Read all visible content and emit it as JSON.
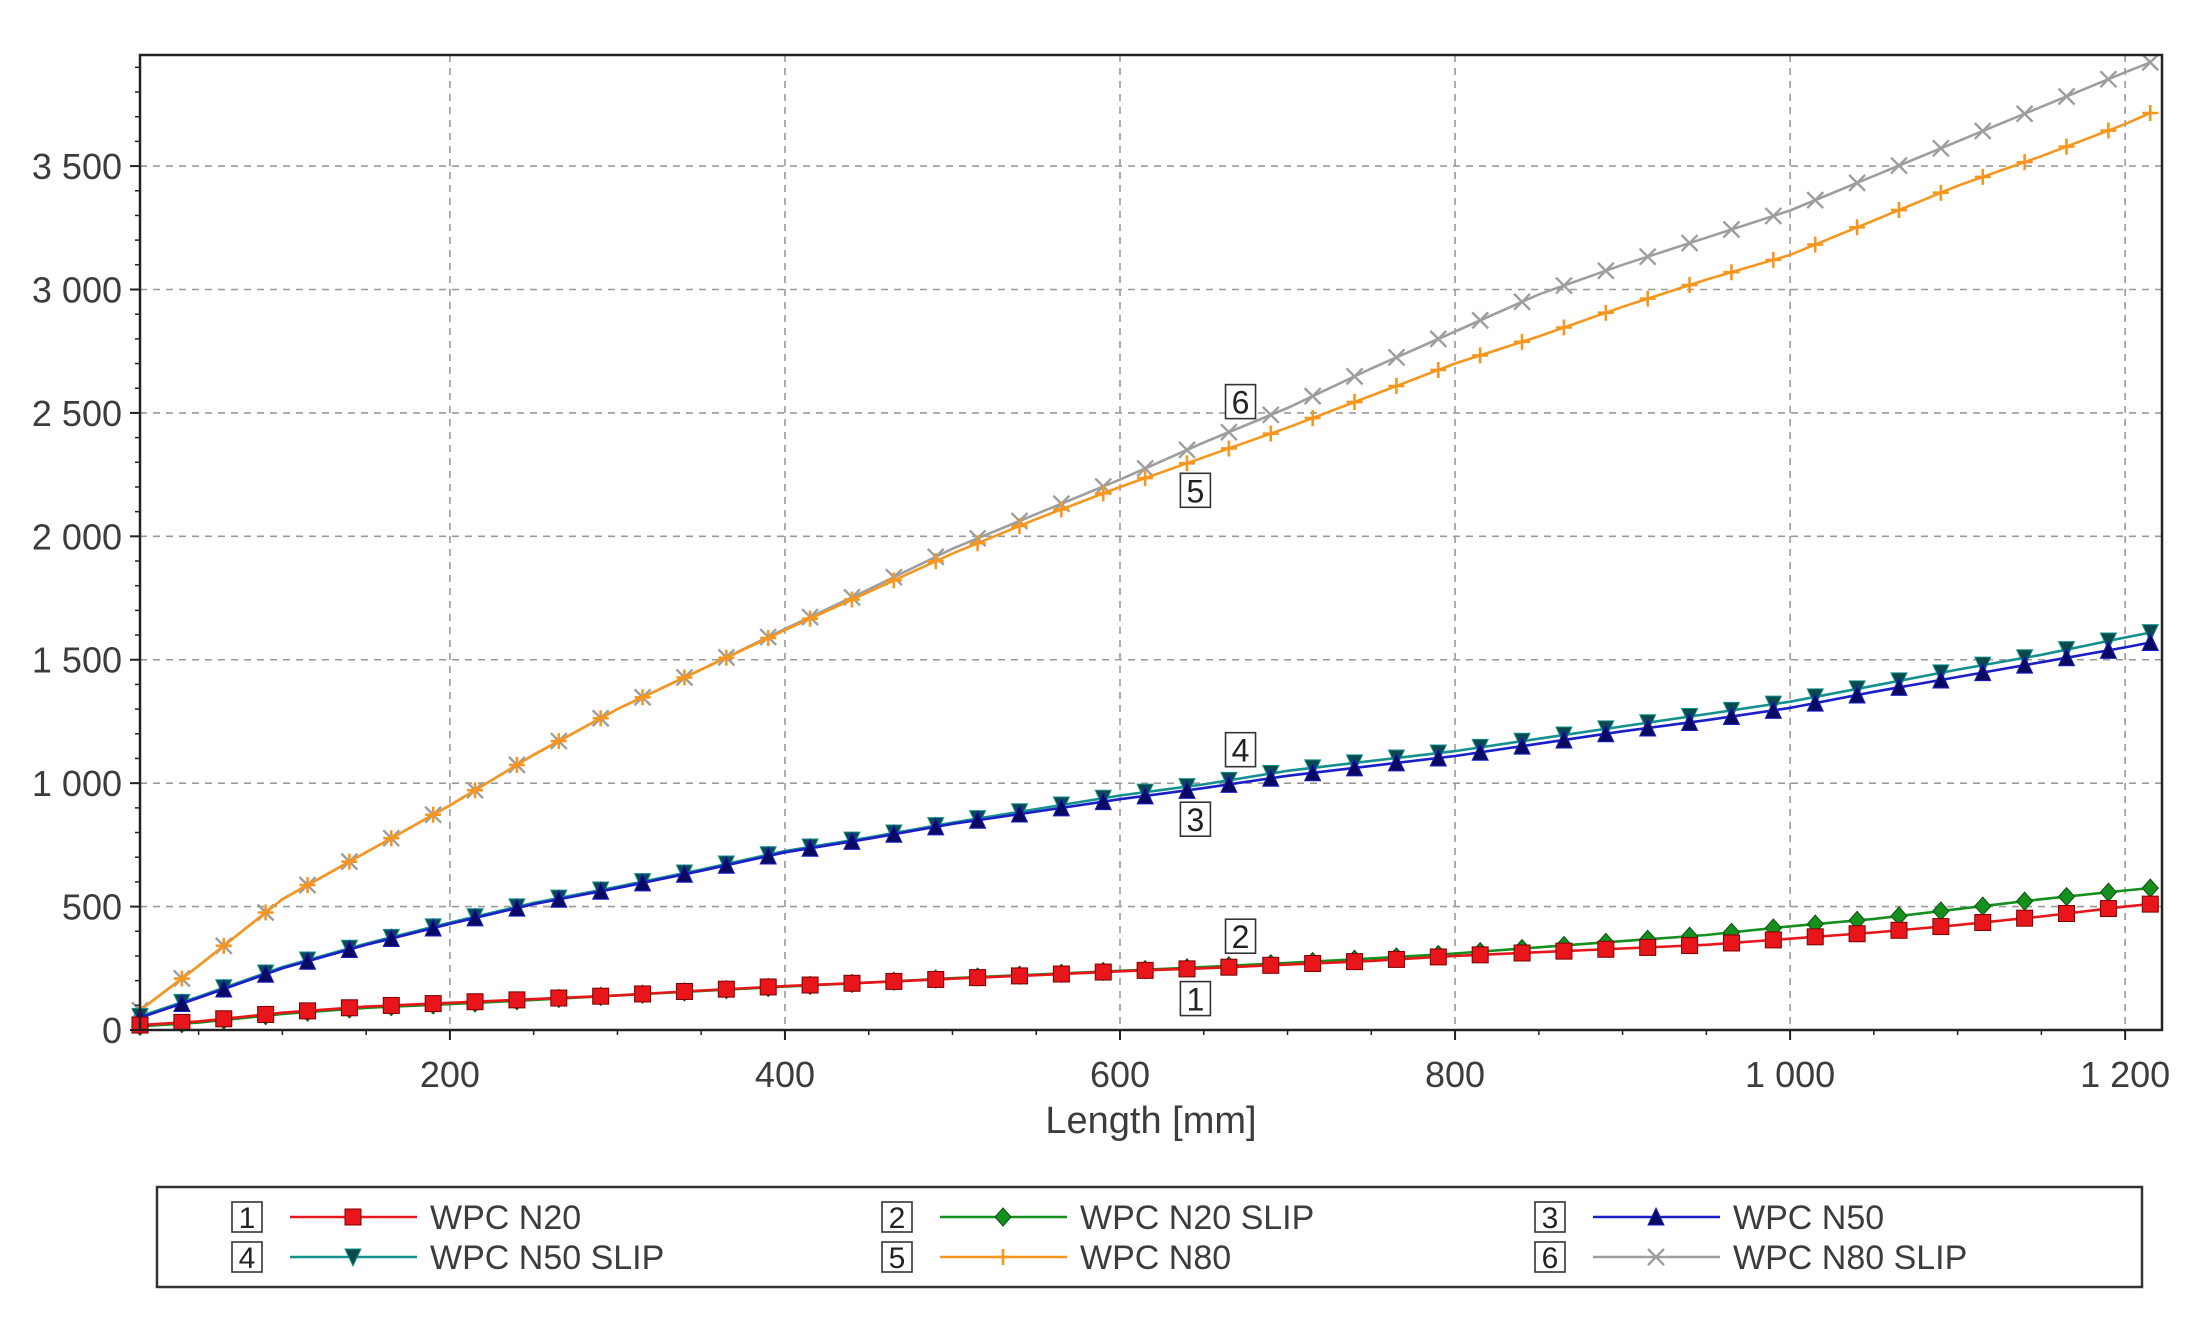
{
  "chart_data": {
    "type": "line",
    "title": "",
    "xlabel": "Length [mm]",
    "ylabel": "",
    "xlim": [
      15,
      1222
    ],
    "ylim": [
      0,
      3950
    ],
    "grid": true,
    "legend_placement": "bottom",
    "x_ticks": [
      {
        "value": 200,
        "label": "200"
      },
      {
        "value": 400,
        "label": "400"
      },
      {
        "value": 600,
        "label": "600"
      },
      {
        "value": 800,
        "label": "800"
      },
      {
        "value": 1000,
        "label": "1 000"
      },
      {
        "value": 1200,
        "label": "1 200"
      }
    ],
    "y_ticks": [
      {
        "value": 0,
        "label": "0"
      },
      {
        "value": 500,
        "label": "500"
      },
      {
        "value": 1000,
        "label": "1 000"
      },
      {
        "value": 1500,
        "label": "1 500"
      },
      {
        "value": 2000,
        "label": "2 000"
      },
      {
        "value": 2500,
        "label": "2 500"
      },
      {
        "value": 3000,
        "label": "3 000"
      },
      {
        "value": 3500,
        "label": "3 500"
      }
    ],
    "series": [
      {
        "id": "1",
        "name": "WPC N20",
        "color": "#e8151b",
        "marker": "square",
        "label_at": 645,
        "x": [
          15,
          50,
          100,
          150,
          200,
          250,
          300,
          350,
          400,
          450,
          500,
          550,
          600,
          650,
          700,
          750,
          800,
          850,
          900,
          950,
          1000,
          1050,
          1100,
          1150,
          1200,
          1215
        ],
        "y": [
          20,
          35,
          70,
          95,
          110,
          125,
          140,
          160,
          178,
          192,
          208,
          222,
          238,
          250,
          265,
          280,
          300,
          315,
          330,
          345,
          370,
          395,
          425,
          460,
          500,
          510
        ]
      },
      {
        "id": "2",
        "name": "WPC N20 SLIP",
        "color": "#15901c",
        "marker": "diamond",
        "label_at": 660,
        "x": [
          15,
          50,
          100,
          150,
          200,
          250,
          300,
          350,
          400,
          450,
          500,
          550,
          600,
          650,
          700,
          750,
          800,
          850,
          900,
          950,
          1000,
          1050,
          1100,
          1150,
          1200,
          1215
        ],
        "y": [
          15,
          30,
          65,
          90,
          105,
          122,
          140,
          158,
          176,
          192,
          210,
          225,
          240,
          255,
          272,
          290,
          310,
          335,
          360,
          385,
          420,
          450,
          490,
          530,
          565,
          575
        ]
      },
      {
        "id": "3",
        "name": "WPC N50",
        "color": "#1a1ec8",
        "marker": "triangle-up",
        "label_at": 645,
        "x": [
          15,
          50,
          100,
          150,
          200,
          250,
          300,
          350,
          400,
          450,
          500,
          550,
          600,
          650,
          700,
          750,
          800,
          850,
          900,
          950,
          1000,
          1050,
          1100,
          1150,
          1200,
          1215
        ],
        "y": [
          50,
          130,
          250,
          345,
          430,
          510,
          575,
          645,
          720,
          775,
          835,
          885,
          935,
          980,
          1030,
          1070,
          1110,
          1160,
          1210,
          1255,
          1305,
          1370,
          1430,
          1490,
          1550,
          1570
        ]
      },
      {
        "id": "4",
        "name": "WPC N50 SLIP",
        "color": "#14908f",
        "marker": "triangle-down",
        "label_at": 660,
        "x": [
          15,
          50,
          100,
          150,
          200,
          250,
          300,
          350,
          400,
          450,
          500,
          550,
          600,
          650,
          700,
          750,
          800,
          850,
          900,
          950,
          1000,
          1050,
          1100,
          1150,
          1200,
          1215
        ],
        "y": [
          55,
          135,
          255,
          350,
          435,
          515,
          580,
          650,
          725,
          780,
          840,
          895,
          950,
          995,
          1050,
          1090,
          1130,
          1180,
          1230,
          1280,
          1330,
          1395,
          1460,
          1520,
          1590,
          1610
        ]
      },
      {
        "id": "5",
        "name": "WPC N80",
        "color": "#f7961e",
        "marker": "plus",
        "label_at": 645,
        "x": [
          15,
          50,
          100,
          150,
          200,
          250,
          300,
          350,
          400,
          450,
          500,
          550,
          600,
          650,
          700,
          750,
          800,
          850,
          900,
          950,
          1000,
          1050,
          1100,
          1150,
          1200,
          1215
        ],
        "y": [
          80,
          260,
          530,
          720,
          910,
          1115,
          1300,
          1460,
          1620,
          1775,
          1930,
          2070,
          2200,
          2320,
          2440,
          2570,
          2700,
          2810,
          2930,
          3040,
          3140,
          3280,
          3420,
          3540,
          3670,
          3715
        ]
      },
      {
        "id": "6",
        "name": "WPC N80 SLIP",
        "color": "#9e9e9e",
        "marker": "cross",
        "label_at": 660,
        "x": [
          15,
          50,
          100,
          150,
          200,
          250,
          300,
          350,
          400,
          450,
          500,
          550,
          600,
          650,
          700,
          750,
          800,
          850,
          900,
          950,
          1000,
          1050,
          1100,
          1150,
          1200,
          1215
        ],
        "y": [
          80,
          260,
          530,
          720,
          910,
          1115,
          1300,
          1460,
          1625,
          1785,
          1950,
          2090,
          2230,
          2380,
          2520,
          2680,
          2830,
          2980,
          3100,
          3210,
          3320,
          3460,
          3600,
          3740,
          3880,
          3920
        ]
      }
    ]
  }
}
